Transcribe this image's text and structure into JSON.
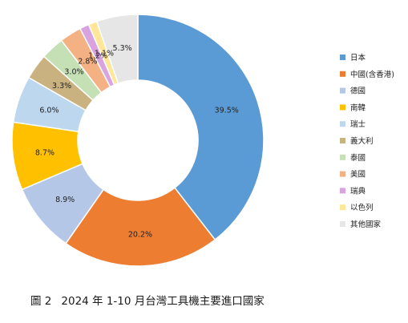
{
  "caption": {
    "figure_no": "圖 2",
    "text": "2024 年 1-10 月台灣工具機主要進口國家"
  },
  "chart_data": {
    "type": "pie",
    "variant": "donut",
    "legend_position": "right",
    "start_angle_deg": 0,
    "direction": "clockwise",
    "slices": [
      {
        "label": "日本",
        "value": 39.5,
        "display": "39.5%",
        "color": "#5b9bd5"
      },
      {
        "label": "中國(含香港)",
        "value": 20.2,
        "display": "20.2%",
        "color": "#ed7d31"
      },
      {
        "label": "德國",
        "value": 8.9,
        "display": "8.9%",
        "color": "#b4c7e7"
      },
      {
        "label": "南韓",
        "value": 8.7,
        "display": "8.7%",
        "color": "#ffc000"
      },
      {
        "label": "瑞士",
        "value": 6.0,
        "display": "6.0%",
        "color": "#bdd7ee"
      },
      {
        "label": "義大利",
        "value": 3.3,
        "display": "3.3%",
        "color": "#c9b27f"
      },
      {
        "label": "泰國",
        "value": 3.0,
        "display": "3.0%",
        "color": "#c5e0b4"
      },
      {
        "label": "美國",
        "value": 2.8,
        "display": "2.8%",
        "color": "#f4b183"
      },
      {
        "label": "瑞典",
        "value": 1.2,
        "display": "1.2%",
        "color": "#d9a3df"
      },
      {
        "label": "以色列",
        "value": 1.1,
        "display": "1.1%",
        "color": "#ffe699"
      },
      {
        "label": "其他國家",
        "value": 5.3,
        "display": "5.3%",
        "color": "#e7e6e6"
      }
    ]
  }
}
